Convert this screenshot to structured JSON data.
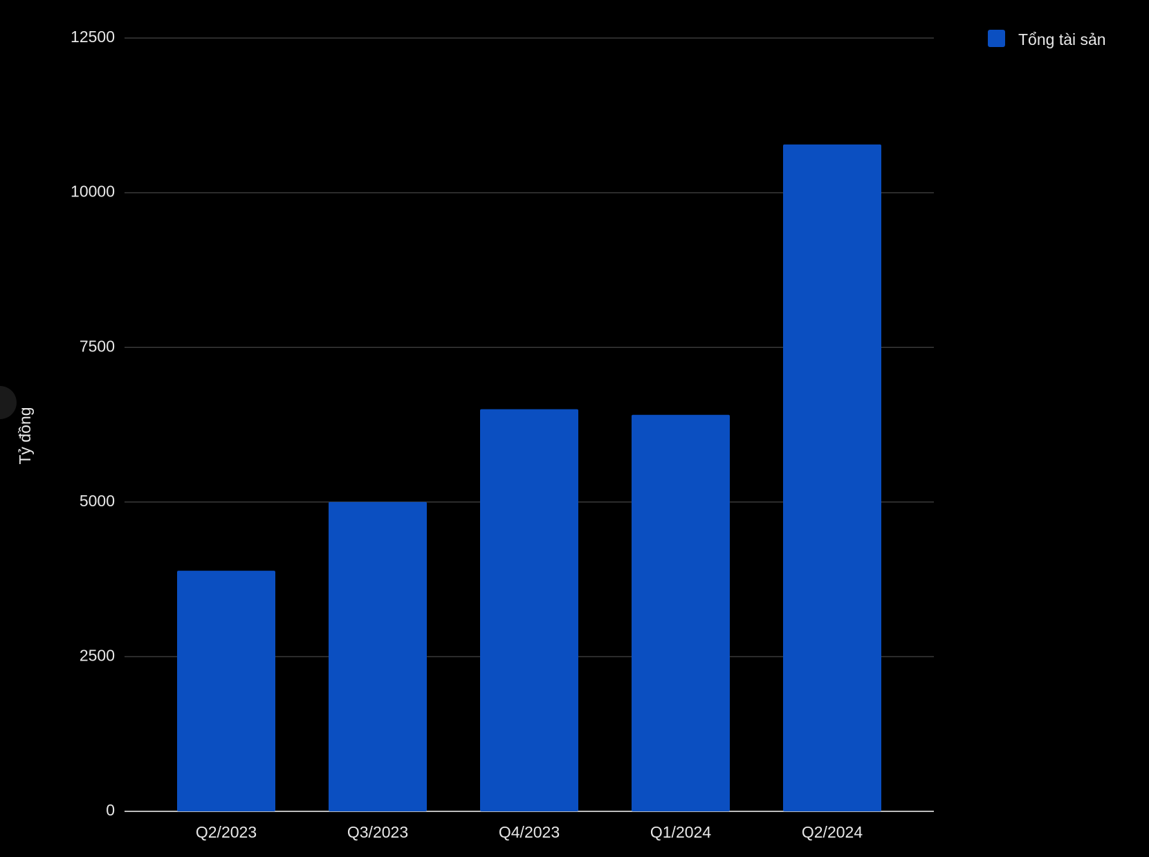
{
  "chart_data": {
    "type": "bar",
    "y_label": "Tỷ đồng",
    "categories": [
      "Q2/2023",
      "Q3/2023",
      "Q4/2023",
      "Q1/2024",
      "Q2/2024"
    ],
    "series": [
      {
        "name": "Tổng tài sản",
        "color": "#0b4fc1",
        "values": [
          3890,
          5000,
          6500,
          6410,
          10780
        ]
      }
    ],
    "ylim": [
      0,
      12500
    ],
    "yticks": [
      0,
      2500,
      5000,
      7500,
      10000,
      12500
    ],
    "grid": true,
    "legend": "top-right"
  }
}
